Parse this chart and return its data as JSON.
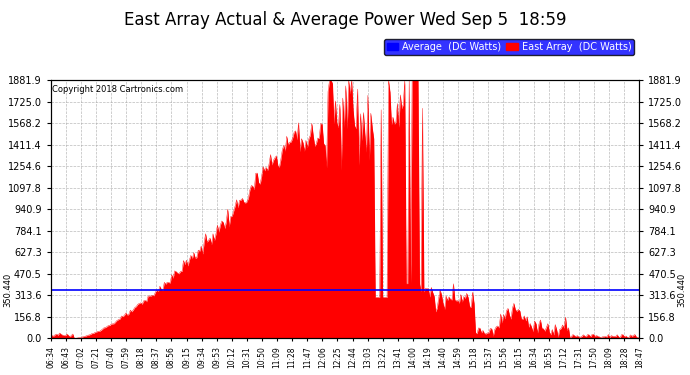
{
  "title": "East Array Actual & Average Power Wed Sep 5  18:59",
  "copyright": "Copyright 2018 Cartronics.com",
  "legend_avg": "Average  (DC Watts)",
  "legend_east": "East Array  (DC Watts)",
  "avg_line_value": 350.44,
  "ymin": 0.0,
  "ymax": 1881.9,
  "yticks": [
    0.0,
    156.8,
    313.6,
    470.5,
    627.3,
    784.1,
    940.9,
    1097.8,
    1254.6,
    1411.4,
    1568.2,
    1725.0,
    1881.9
  ],
  "bg_color": "#ffffff",
  "plot_bg_color": "#ffffff",
  "grid_color": "#aaaaaa",
  "red_color": "#ff0000",
  "blue_avg_color": "#0000ff",
  "xtick_labels": [
    "06:34",
    "06:43",
    "07:02",
    "07:21",
    "07:40",
    "07:59",
    "08:18",
    "08:37",
    "08:56",
    "09:15",
    "09:34",
    "09:53",
    "10:12",
    "10:31",
    "10:50",
    "11:09",
    "11:28",
    "11:47",
    "12:06",
    "12:25",
    "12:44",
    "13:03",
    "13:22",
    "13:41",
    "14:00",
    "14:19",
    "14:40",
    "14:59",
    "15:18",
    "15:37",
    "15:56",
    "16:15",
    "16:34",
    "16:53",
    "17:12",
    "17:31",
    "17:50",
    "18:09",
    "18:28",
    "18:47"
  ],
  "num_points": 400
}
